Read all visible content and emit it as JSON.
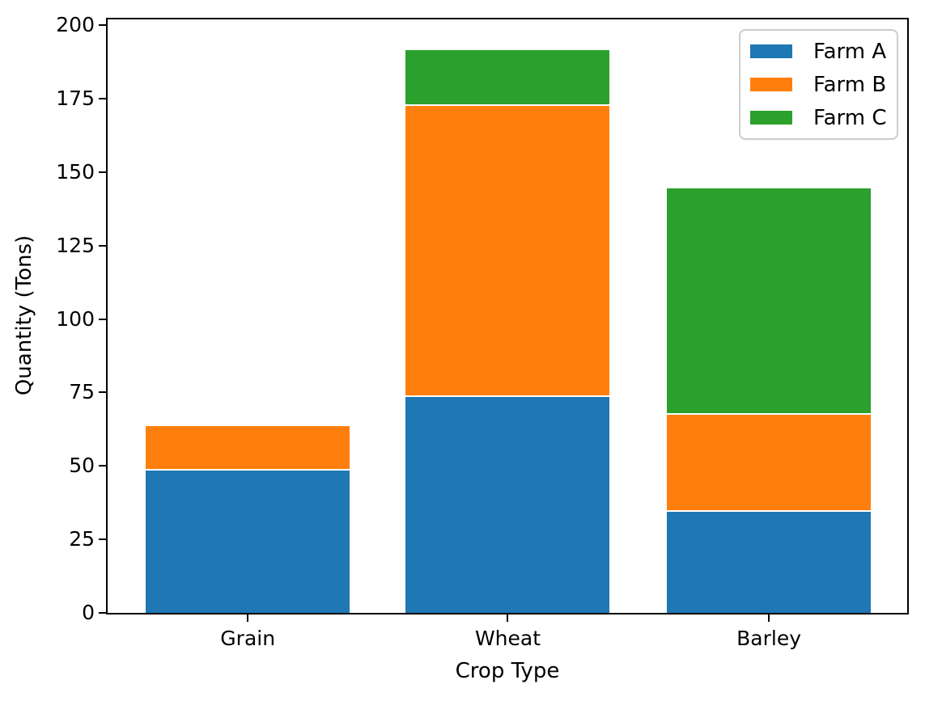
{
  "chart_data": {
    "type": "bar",
    "stacked": true,
    "title": "",
    "xlabel": "Crop Type",
    "ylabel": "Quantity (Tons)",
    "categories": [
      "Grain",
      "Wheat",
      "Barley"
    ],
    "series": [
      {
        "name": "Farm A",
        "color": "#1f77b4",
        "values": [
          49,
          74,
          35
        ]
      },
      {
        "name": "Farm B",
        "color": "#ff7f0e",
        "values": [
          15,
          99,
          33
        ]
      },
      {
        "name": "Farm C",
        "color": "#2ca02c",
        "values": [
          0,
          19,
          77
        ]
      }
    ],
    "totals": [
      64,
      192,
      145
    ],
    "bar_edge_color": "#ffffff",
    "yticks": [
      0,
      25,
      50,
      75,
      100,
      125,
      150,
      175,
      200
    ],
    "ylim": [
      0,
      202
    ],
    "grid": false,
    "legend": {
      "position": "upper right",
      "entries": [
        "Farm A",
        "Farm B",
        "Farm C"
      ]
    },
    "axis_color": "#000000",
    "background_color": "#ffffff"
  }
}
